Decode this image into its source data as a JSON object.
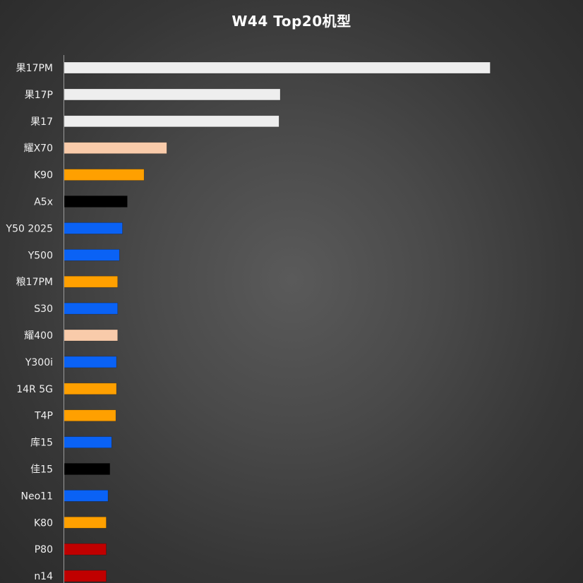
{
  "chart_data": {
    "type": "bar",
    "orientation": "horizontal",
    "title": "W44 Top20机型",
    "xlabel": "",
    "ylabel": "",
    "xlim": [
      0,
      10
    ],
    "grid": false,
    "legend": "none",
    "categories": [
      "果17PM",
      "果17P",
      "果17",
      "耀X70",
      "K90",
      "A5x",
      "Y50 2025",
      "Y500",
      "粮17PM",
      "S30",
      "耀400",
      "Y300i",
      "14R 5G",
      "T4P",
      "库15",
      "佳15",
      "Neo11",
      "K80",
      "P80",
      "n14"
    ],
    "values": [
      7.1,
      3.6,
      3.58,
      1.71,
      1.33,
      1.05,
      0.97,
      0.92,
      0.89,
      0.89,
      0.89,
      0.87,
      0.87,
      0.86,
      0.79,
      0.76,
      0.73,
      0.7,
      0.7,
      0.7
    ],
    "colors": [
      "#eeeeee",
      "#eeeeee",
      "#eeeeee",
      "#f9cbaa",
      "#ffa000",
      "#000000",
      "#0a62f5",
      "#0a62f5",
      "#ffa000",
      "#0a62f5",
      "#f9cbaa",
      "#0a62f5",
      "#ffa000",
      "#ffa000",
      "#0a62f5",
      "#000000",
      "#0a62f5",
      "#ffa000",
      "#c00000",
      "#c00000"
    ],
    "axis_color": "#9a9a9a"
  }
}
